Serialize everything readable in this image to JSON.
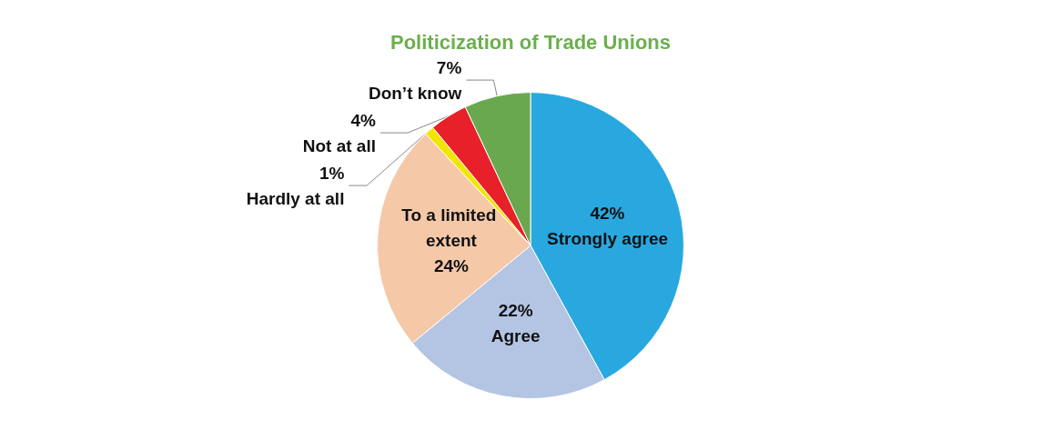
{
  "chart_data": {
    "type": "pie",
    "title": "Politicization of Trade Unions",
    "categories": [
      "Strongly agree",
      "Agree",
      "To a limited extent",
      "Hardly at all",
      "Not at all",
      "Don’t know"
    ],
    "values": [
      42,
      22,
      24,
      1,
      4,
      7
    ],
    "value_labels": [
      "42%",
      "22%",
      "24%",
      "1%",
      "4%",
      "7%"
    ],
    "colors": [
      "#29a8e0",
      "#b3c5e3",
      "#f5c8a8",
      "#f2e600",
      "#e8202a",
      "#6aa84f"
    ]
  }
}
